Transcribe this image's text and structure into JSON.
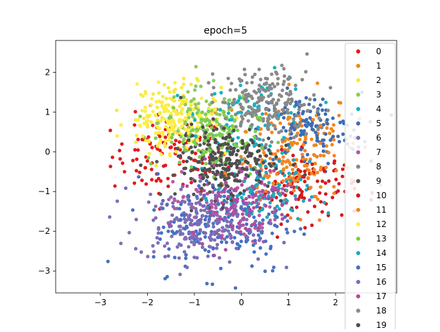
{
  "chart_data": {
    "type": "scatter",
    "title": "epoch=5",
    "xlabel": "",
    "ylabel": "",
    "xlim": [
      -3.95,
      3.3
    ],
    "ylim": [
      -3.55,
      2.8
    ],
    "xticks": [
      -3,
      -2,
      -1,
      0,
      1,
      2
    ],
    "yticks": [
      -3,
      -2,
      -1,
      0,
      1,
      2
    ],
    "xtick_labels": [
      "−3",
      "−2",
      "−1",
      "0",
      "1",
      "2"
    ],
    "ytick_labels": [
      "−3",
      "−2",
      "−1",
      "0",
      "1",
      "2"
    ],
    "grid": false,
    "legend": "top-right",
    "series": [
      {
        "name": "0",
        "color": "#e41a1c",
        "center": [
          -1.55,
          -0.1
        ],
        "spread": 0.6,
        "n": 110
      },
      {
        "name": "1",
        "color": "#f0881f",
        "center": [
          1.05,
          0.35
        ],
        "spread": 0.7,
        "n": 110
      },
      {
        "name": "2",
        "color": "#f5ea3f",
        "center": [
          -1.35,
          0.95
        ],
        "spread": 0.45,
        "n": 110
      },
      {
        "name": "3",
        "color": "#8dcc5b",
        "center": [
          -0.75,
          0.75
        ],
        "spread": 0.5,
        "n": 110
      },
      {
        "name": "4",
        "color": "#17b1c1",
        "center": [
          0.35,
          0.9
        ],
        "spread": 0.6,
        "n": 90
      },
      {
        "name": "5",
        "color": "#3c6db3",
        "center": [
          1.45,
          0.55
        ],
        "spread": 0.55,
        "n": 120
      },
      {
        "name": "6",
        "color": "#7f6fb7",
        "center": [
          -1.2,
          -1.75
        ],
        "spread": 0.55,
        "n": 110
      },
      {
        "name": "7",
        "color": "#b85aa4",
        "center": [
          -0.35,
          -1.4
        ],
        "spread": 0.55,
        "n": 110
      },
      {
        "name": "8",
        "color": "#888888",
        "center": [
          0.45,
          1.05
        ],
        "spread": 0.55,
        "n": 110
      },
      {
        "name": "9",
        "color": "#525252",
        "center": [
          -0.45,
          -0.4
        ],
        "spread": 0.45,
        "n": 130
      },
      {
        "name": "10",
        "color": "#d7191c",
        "center": [
          1.4,
          -0.9
        ],
        "spread": 0.5,
        "n": 100
      },
      {
        "name": "11",
        "color": "#f58525",
        "center": [
          1.05,
          -0.55
        ],
        "spread": 0.55,
        "n": 100
      },
      {
        "name": "12",
        "color": "#ffee44",
        "center": [
          -1.55,
          0.75
        ],
        "spread": 0.45,
        "n": 100
      },
      {
        "name": "13",
        "color": "#7ccd4d",
        "center": [
          -0.65,
          0.35
        ],
        "spread": 0.5,
        "n": 100
      },
      {
        "name": "14",
        "color": "#1fa9bd",
        "center": [
          0.45,
          -1.1
        ],
        "spread": 0.5,
        "n": 110
      },
      {
        "name": "15",
        "color": "#4472c4",
        "center": [
          -0.35,
          -1.8
        ],
        "spread": 0.75,
        "n": 160
      },
      {
        "name": "16",
        "color": "#7a6db5",
        "center": [
          -0.6,
          -1.9
        ],
        "spread": 0.55,
        "n": 100
      },
      {
        "name": "17",
        "color": "#b04c9f",
        "center": [
          0.0,
          -1.2
        ],
        "spread": 0.55,
        "n": 100
      },
      {
        "name": "18",
        "color": "#8a8a8a",
        "center": [
          0.6,
          1.3
        ],
        "spread": 0.5,
        "n": 100
      },
      {
        "name": "19",
        "color": "#4d4d4d",
        "center": [
          -0.3,
          -0.15
        ],
        "spread": 0.5,
        "n": 130
      }
    ]
  }
}
